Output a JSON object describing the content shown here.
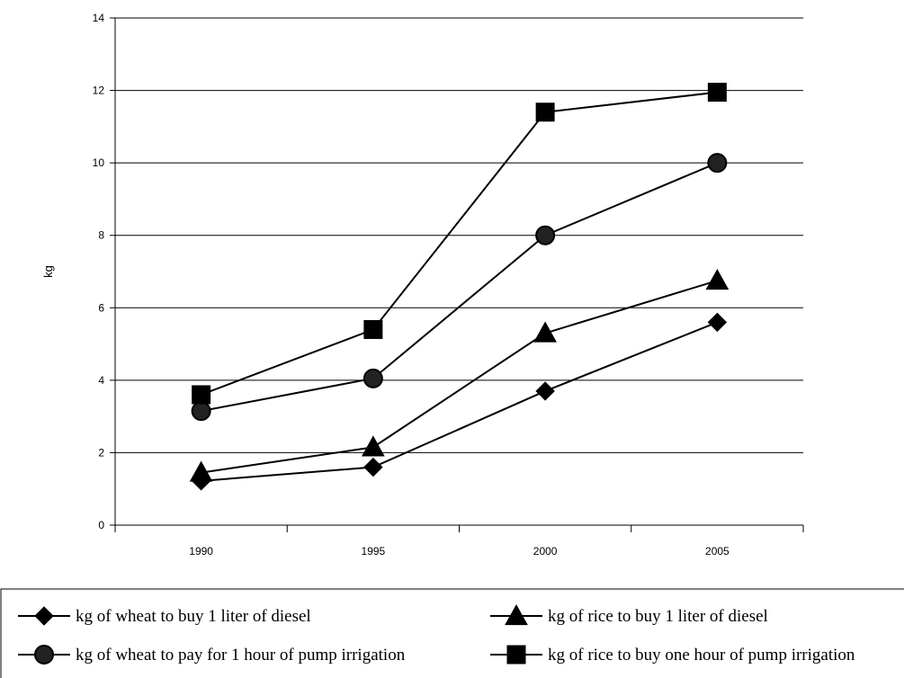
{
  "chart_data": {
    "type": "line",
    "title": "",
    "xlabel": "",
    "ylabel": "kg",
    "categories": [
      "1990",
      "1995",
      "2000",
      "2005"
    ],
    "ylim": [
      0,
      14
    ],
    "yticks": [
      "0",
      "2",
      "4",
      "6",
      "8",
      "10",
      "12",
      "14"
    ],
    "grid": true,
    "legend_position": "bottom",
    "series": [
      {
        "name": "kg of wheat to buy 1 liter of diesel",
        "marker": "diamond",
        "values": [
          1.22,
          1.6,
          3.7,
          5.6
        ]
      },
      {
        "name": "kg of rice to buy 1 liter of diesel",
        "marker": "triangle",
        "values": [
          1.45,
          2.15,
          5.3,
          6.75
        ]
      },
      {
        "name": "kg of wheat to pay for 1 hour of pump irrigation",
        "marker": "circle",
        "values": [
          3.15,
          4.05,
          8.0,
          10.0
        ]
      },
      {
        "name": "kg of rice to buy one hour of pump irrigation",
        "marker": "square",
        "values": [
          3.6,
          5.4,
          11.4,
          11.95
        ]
      }
    ]
  }
}
